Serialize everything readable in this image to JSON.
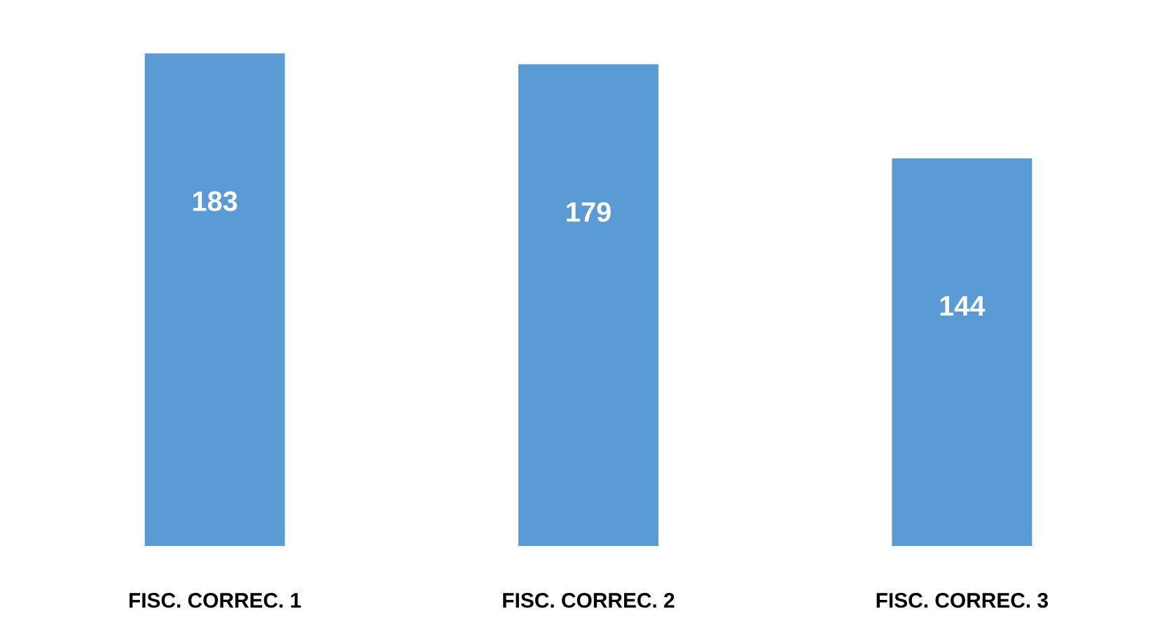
{
  "chart_data": {
    "type": "bar",
    "categories": [
      "FISC. CORREC. 1",
      "FISC. CORREC. 2",
      "FISC. CORREC. 3"
    ],
    "values": [
      183,
      179,
      144
    ],
    "color": "#5b9bd5",
    "data_labels": true
  }
}
